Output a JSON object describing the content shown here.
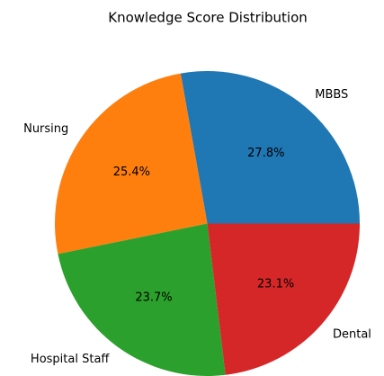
{
  "chart_data": {
    "type": "pie",
    "title": "Knowledge Score Distribution",
    "categories": [
      "MBBS",
      "Nursing",
      "Hospital Staff",
      "Dental"
    ],
    "values": [
      27.8,
      25.4,
      23.7,
      23.1
    ],
    "value_labels": [
      "27.8%",
      "25.4%",
      "23.7%",
      "23.1%"
    ],
    "colors": [
      "#1f77b4",
      "#ff7f0e",
      "#2ca02c",
      "#d62728"
    ]
  }
}
